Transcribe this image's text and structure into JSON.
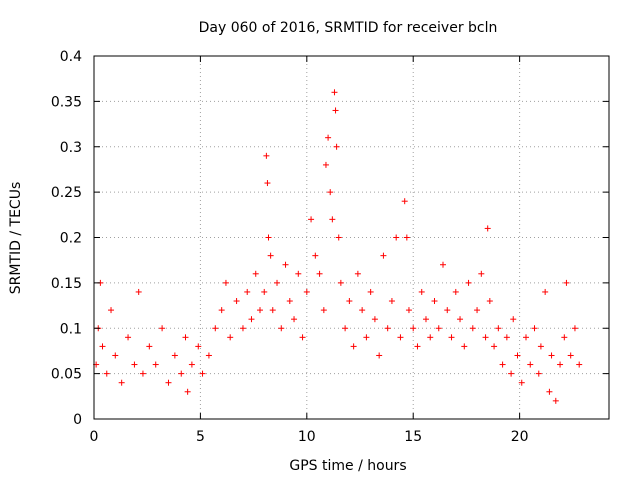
{
  "chart_data": {
    "type": "scatter",
    "title": "Day 060 of 2016, SRMTID for receiver bcln",
    "xlabel": "GPS time / hours",
    "ylabel": "SRMTID / TECUs",
    "xlim": [
      0,
      24.2
    ],
    "ylim": [
      0,
      0.4
    ],
    "x_ticks": [
      0,
      5,
      10,
      15,
      20
    ],
    "x_tick_labels": [
      "0",
      "5",
      "10",
      "15",
      "20"
    ],
    "y_ticks": [
      0,
      0.05,
      0.1,
      0.15,
      0.2,
      0.25,
      0.3,
      0.35,
      0.4
    ],
    "y_tick_labels": [
      "0",
      "0.05",
      "0.1",
      "0.15",
      "0.2",
      "0.25",
      "0.3",
      "0.35",
      "0.4"
    ],
    "grid": true,
    "marker": "plus",
    "series": [
      {
        "color": "#ff0000",
        "x": [
          0.1,
          0.2,
          0.3,
          0.4,
          0.6,
          0.8,
          1.0,
          1.3,
          1.6,
          1.9,
          2.1,
          2.3,
          2.6,
          2.9,
          3.2,
          3.5,
          3.8,
          4.1,
          4.3,
          4.4,
          4.6,
          4.9,
          5.1,
          5.4,
          5.7,
          6.0,
          6.2,
          6.4,
          6.7,
          7.0,
          7.2,
          7.4,
          7.6,
          7.8,
          8.0,
          8.1,
          8.15,
          8.2,
          8.3,
          8.4,
          8.6,
          8.8,
          9.0,
          9.2,
          9.4,
          9.6,
          9.8,
          10.0,
          10.2,
          10.4,
          10.6,
          10.8,
          10.9,
          11.0,
          11.1,
          11.2,
          11.3,
          11.35,
          11.4,
          11.5,
          11.6,
          11.8,
          12.0,
          12.2,
          12.4,
          12.6,
          12.8,
          13.0,
          13.2,
          13.4,
          13.6,
          13.8,
          14.0,
          14.2,
          14.4,
          14.6,
          14.7,
          14.8,
          15.0,
          15.2,
          15.4,
          15.6,
          15.8,
          16.0,
          16.2,
          16.4,
          16.6,
          16.8,
          17.0,
          17.2,
          17.4,
          17.6,
          17.8,
          18.0,
          18.2,
          18.4,
          18.5,
          18.6,
          18.8,
          19.0,
          19.2,
          19.4,
          19.6,
          19.7,
          19.9,
          20.1,
          20.3,
          20.5,
          20.7,
          20.9,
          21.0,
          21.2,
          21.4,
          21.5,
          21.7,
          21.9,
          22.1,
          22.2,
          22.4,
          22.6,
          22.8
        ],
        "y": [
          0.06,
          0.1,
          0.15,
          0.08,
          0.05,
          0.12,
          0.07,
          0.04,
          0.09,
          0.06,
          0.14,
          0.05,
          0.08,
          0.06,
          0.1,
          0.04,
          0.07,
          0.05,
          0.09,
          0.03,
          0.06,
          0.08,
          0.05,
          0.07,
          0.1,
          0.12,
          0.15,
          0.09,
          0.13,
          0.1,
          0.14,
          0.11,
          0.16,
          0.12,
          0.14,
          0.29,
          0.26,
          0.2,
          0.18,
          0.12,
          0.15,
          0.1,
          0.17,
          0.13,
          0.11,
          0.16,
          0.09,
          0.14,
          0.22,
          0.18,
          0.16,
          0.12,
          0.28,
          0.31,
          0.25,
          0.22,
          0.36,
          0.34,
          0.3,
          0.2,
          0.15,
          0.1,
          0.13,
          0.08,
          0.16,
          0.12,
          0.09,
          0.14,
          0.11,
          0.07,
          0.18,
          0.1,
          0.13,
          0.2,
          0.09,
          0.24,
          0.2,
          0.12,
          0.1,
          0.08,
          0.14,
          0.11,
          0.09,
          0.13,
          0.1,
          0.17,
          0.12,
          0.09,
          0.14,
          0.11,
          0.08,
          0.15,
          0.1,
          0.12,
          0.16,
          0.09,
          0.21,
          0.13,
          0.08,
          0.1,
          0.06,
          0.09,
          0.05,
          0.11,
          0.07,
          0.04,
          0.09,
          0.06,
          0.1,
          0.05,
          0.08,
          0.14,
          0.03,
          0.07,
          0.02,
          0.06,
          0.09,
          0.15,
          0.07,
          0.1,
          0.06
        ]
      }
    ]
  }
}
